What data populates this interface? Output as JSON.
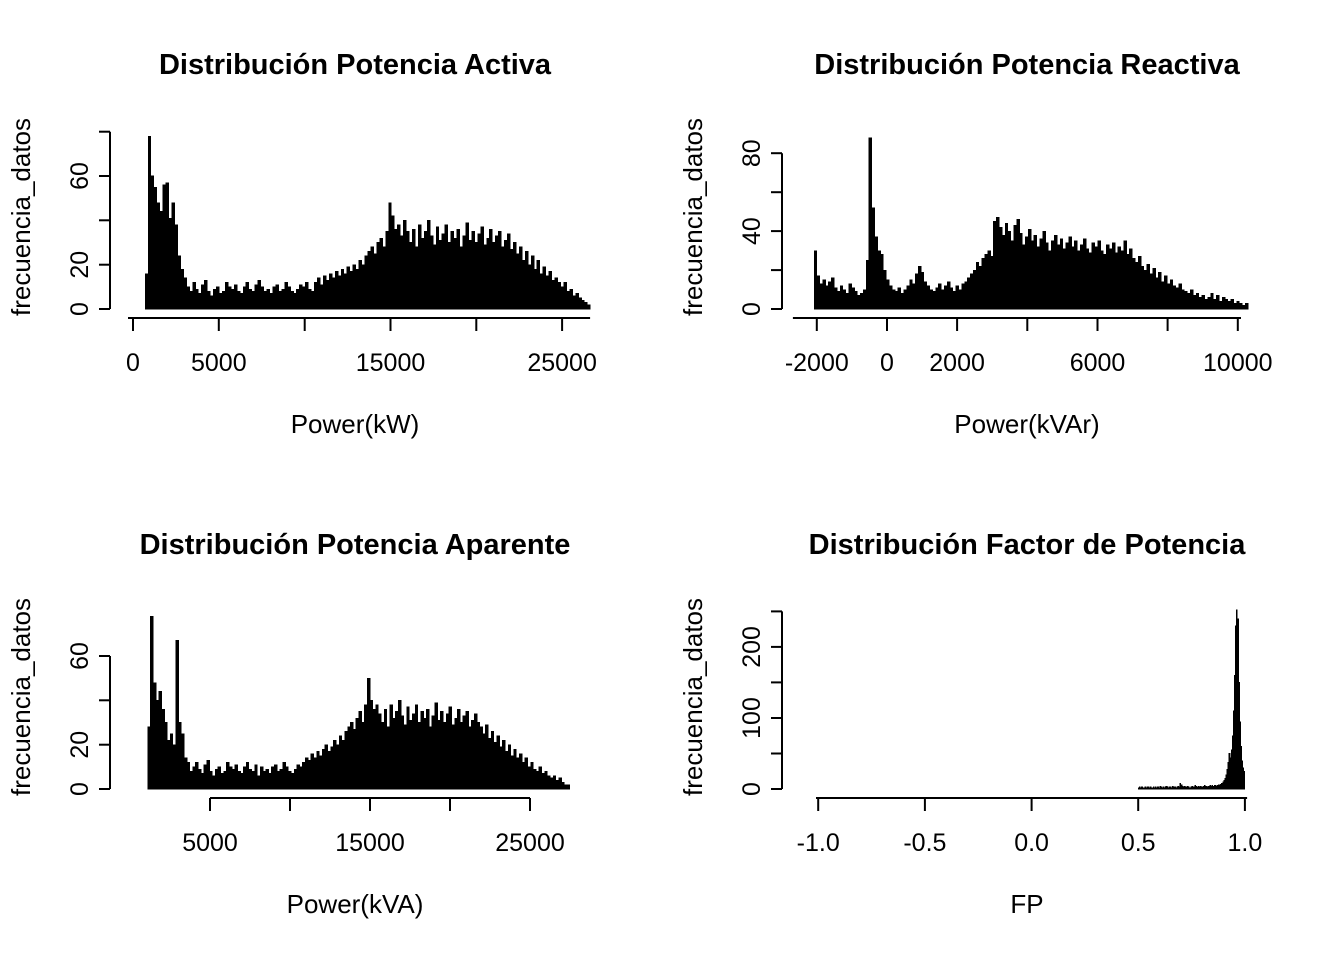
{
  "figure": {
    "background": "#ffffff",
    "bar_color": "#000000",
    "axis_color": "#000000"
  },
  "chart_data": [
    {
      "type": "bar",
      "title": "Distribución Potencia Activa",
      "xlabel": "Power(kW)",
      "ylabel": "frecuencia_datos",
      "bar_color": "#000000",
      "xlim": [
        -875,
        26800
      ],
      "ylim": [
        0,
        83
      ],
      "x_axis_span": [
        -290,
        26630
      ],
      "y_axis_span": [
        0,
        80
      ],
      "x_start": 700,
      "bin_width": 173,
      "x_ticks": [
        {
          "v": 0,
          "label": "0"
        },
        {
          "v": 5000,
          "label": "5000"
        },
        {
          "v": 10000,
          "label": ""
        },
        {
          "v": 15000,
          "label": "15000"
        },
        {
          "v": 20000,
          "label": ""
        },
        {
          "v": 25000,
          "label": "25000"
        }
      ],
      "y_ticks": [
        {
          "v": 0,
          "label": "0"
        },
        {
          "v": 20,
          "label": "20"
        },
        {
          "v": 40,
          "label": ""
        },
        {
          "v": 60,
          "label": "60"
        },
        {
          "v": 80,
          "label": ""
        }
      ],
      "values": [
        16,
        78,
        60,
        55,
        48,
        44,
        56,
        57,
        41,
        48,
        38,
        24,
        18,
        14,
        10,
        8,
        12,
        9,
        7,
        11,
        13,
        8,
        6,
        9,
        10,
        7,
        8,
        12,
        10,
        9,
        11,
        8,
        7,
        10,
        12,
        9,
        8,
        11,
        13,
        10,
        8,
        9,
        7,
        10,
        11,
        8,
        9,
        12,
        10,
        8,
        7,
        9,
        11,
        10,
        12,
        9,
        8,
        12,
        14,
        11,
        15,
        13,
        16,
        14,
        17,
        15,
        18,
        16,
        19,
        17,
        20,
        18,
        22,
        20,
        24,
        26,
        28,
        25,
        30,
        32,
        28,
        35,
        48,
        42,
        36,
        38,
        33,
        40,
        35,
        30,
        36,
        28,
        38,
        32,
        35,
        40,
        33,
        29,
        37,
        31,
        34,
        38,
        30,
        35,
        32,
        36,
        28,
        33,
        39,
        31,
        35,
        30,
        34,
        37,
        29,
        32,
        36,
        30,
        33,
        35,
        28,
        31,
        34,
        27,
        30,
        25,
        28,
        22,
        26,
        20,
        24,
        18,
        22,
        16,
        19,
        15,
        17,
        13,
        14,
        12,
        10,
        12,
        8,
        9,
        6,
        7,
        5,
        4,
        3,
        2
      ]
    },
    {
      "type": "bar",
      "title": "Distribución Potencia Reactiva",
      "xlabel": "Power(kVAr)",
      "ylabel": "frecuencia_datos",
      "bar_color": "#000000",
      "xlim": [
        -2764,
        10775
      ],
      "ylim": [
        0,
        94.5
      ],
      "x_axis_span": [
        -2680,
        10090
      ],
      "y_axis_span": [
        0,
        80
      ],
      "x_start": -2080,
      "bin_width": 82.5,
      "x_ticks": [
        {
          "v": -2000,
          "label": "-2000"
        },
        {
          "v": 0,
          "label": "0"
        },
        {
          "v": 2000,
          "label": "2000"
        },
        {
          "v": 4000,
          "label": ""
        },
        {
          "v": 6000,
          "label": "6000"
        },
        {
          "v": 8000,
          "label": ""
        },
        {
          "v": 10000,
          "label": "10000"
        }
      ],
      "y_ticks": [
        {
          "v": 0,
          "label": "0"
        },
        {
          "v": 20,
          "label": ""
        },
        {
          "v": 40,
          "label": "40"
        },
        {
          "v": 60,
          "label": ""
        },
        {
          "v": 80,
          "label": "80"
        }
      ],
      "values": [
        30,
        17,
        13,
        15,
        12,
        14,
        16,
        11,
        9,
        12,
        10,
        8,
        13,
        11,
        9,
        7,
        8,
        10,
        25,
        88,
        52,
        37,
        30,
        28,
        20,
        15,
        12,
        10,
        9,
        11,
        8,
        10,
        12,
        15,
        13,
        18,
        22,
        19,
        14,
        12,
        10,
        9,
        11,
        13,
        10,
        12,
        14,
        11,
        9,
        12,
        10,
        13,
        14,
        16,
        18,
        20,
        24,
        22,
        26,
        28,
        30,
        27,
        45,
        47,
        42,
        38,
        44,
        40,
        35,
        43,
        46,
        39,
        33,
        37,
        41,
        35,
        38,
        32,
        36,
        40,
        34,
        30,
        35,
        38,
        33,
        36,
        31,
        34,
        37,
        32,
        35,
        30,
        33,
        36,
        31,
        29,
        34,
        32,
        35,
        30,
        28,
        33,
        31,
        34,
        29,
        32,
        30,
        35,
        28,
        31,
        26,
        24,
        27,
        22,
        20,
        23,
        18,
        21,
        16,
        19,
        14,
        17,
        13,
        15,
        12,
        11,
        13,
        10,
        9,
        8,
        10,
        7,
        8,
        6,
        7,
        5,
        6,
        8,
        5,
        7,
        4,
        6,
        5,
        4,
        5,
        3,
        4,
        3,
        2,
        3
      ]
    },
    {
      "type": "bar",
      "title": "Distribución Potencia Aparente",
      "xlabel": "Power(kVA)",
      "ylabel": "frecuencia_datos",
      "bar_color": "#000000",
      "xlim": [
        -750,
        28940
      ],
      "ylim": [
        0,
        83
      ],
      "x_axis_span": [
        5000,
        25000
      ],
      "y_axis_span": [
        0,
        60
      ],
      "x_start": 1100,
      "bin_width": 176,
      "x_ticks": [
        {
          "v": 5000,
          "label": "5000"
        },
        {
          "v": 10000,
          "label": ""
        },
        {
          "v": 15000,
          "label": "15000"
        },
        {
          "v": 20000,
          "label": ""
        },
        {
          "v": 25000,
          "label": "25000"
        }
      ],
      "y_ticks": [
        {
          "v": 0,
          "label": "0"
        },
        {
          "v": 20,
          "label": "20"
        },
        {
          "v": 40,
          "label": ""
        },
        {
          "v": 60,
          "label": "60"
        }
      ],
      "values": [
        28,
        78,
        48,
        40,
        44,
        36,
        30,
        22,
        25,
        20,
        67,
        30,
        25,
        14,
        12,
        8,
        10,
        12,
        9,
        7,
        11,
        13,
        8,
        6,
        9,
        10,
        7,
        8,
        12,
        10,
        9,
        11,
        8,
        7,
        10,
        12,
        9,
        8,
        11,
        6,
        10,
        8,
        9,
        7,
        10,
        11,
        8,
        9,
        12,
        10,
        8,
        7,
        9,
        11,
        10,
        12,
        14,
        13,
        16,
        14,
        17,
        15,
        18,
        20,
        17,
        19,
        22,
        20,
        24,
        22,
        26,
        28,
        30,
        27,
        32,
        35,
        30,
        38,
        50,
        40,
        36,
        38,
        34,
        30,
        36,
        28,
        38,
        32,
        35,
        40,
        33,
        29,
        37,
        31,
        34,
        38,
        30,
        35,
        32,
        36,
        28,
        33,
        39,
        31,
        35,
        30,
        34,
        37,
        29,
        32,
        36,
        30,
        33,
        35,
        28,
        31,
        34,
        30,
        28,
        25,
        29,
        23,
        26,
        21,
        24,
        19,
        22,
        17,
        20,
        15,
        18,
        14,
        16,
        12,
        14,
        10,
        12,
        9,
        8,
        10,
        7,
        8,
        6,
        5,
        6,
        4,
        5,
        3,
        2,
        2
      ]
    },
    {
      "type": "bar",
      "title": "Distribución Factor de Potencia",
      "xlabel": "FP",
      "ylabel": "frecuencia_datos",
      "bar_color": "#000000",
      "xlim": [
        -1.132,
        1.094
      ],
      "ylim": [
        0,
        259
      ],
      "x_axis_span": [
        -1.01,
        1.01
      ],
      "y_axis_span": [
        0,
        250
      ],
      "x_start": 0.5,
      "bin_width": 0.005,
      "x_ticks": [
        {
          "v": -1.0,
          "label": "-1.0"
        },
        {
          "v": -0.5,
          "label": "-0.5"
        },
        {
          "v": 0.0,
          "label": "0.0"
        },
        {
          "v": 0.5,
          "label": "0.5"
        },
        {
          "v": 1.0,
          "label": "1.0"
        }
      ],
      "y_ticks": [
        {
          "v": 0,
          "label": "0"
        },
        {
          "v": 50,
          "label": ""
        },
        {
          "v": 100,
          "label": "100"
        },
        {
          "v": 150,
          "label": ""
        },
        {
          "v": 200,
          "label": "200"
        },
        {
          "v": 250,
          "label": ""
        }
      ],
      "values": [
        2,
        3,
        2,
        3,
        2,
        2,
        3,
        2,
        3,
        3,
        2,
        3,
        2,
        2,
        3,
        2,
        3,
        2,
        3,
        2,
        4,
        3,
        2,
        3,
        2,
        3,
        4,
        3,
        2,
        3,
        3,
        2,
        4,
        3,
        3,
        2,
        3,
        4,
        3,
        8,
        6,
        4,
        3,
        4,
        3,
        3,
        4,
        3,
        2,
        3,
        4,
        3,
        3,
        5,
        4,
        3,
        4,
        3,
        4,
        3,
        3,
        4,
        5,
        4,
        3,
        4,
        4,
        5,
        4,
        5,
        4,
        5,
        5,
        4,
        5,
        6,
        6,
        7,
        8,
        10,
        12,
        15,
        20,
        28,
        38,
        50,
        44,
        55,
        75,
        110,
        160,
        230,
        252,
        240,
        150,
        95,
        60,
        40,
        30,
        25
      ]
    }
  ]
}
